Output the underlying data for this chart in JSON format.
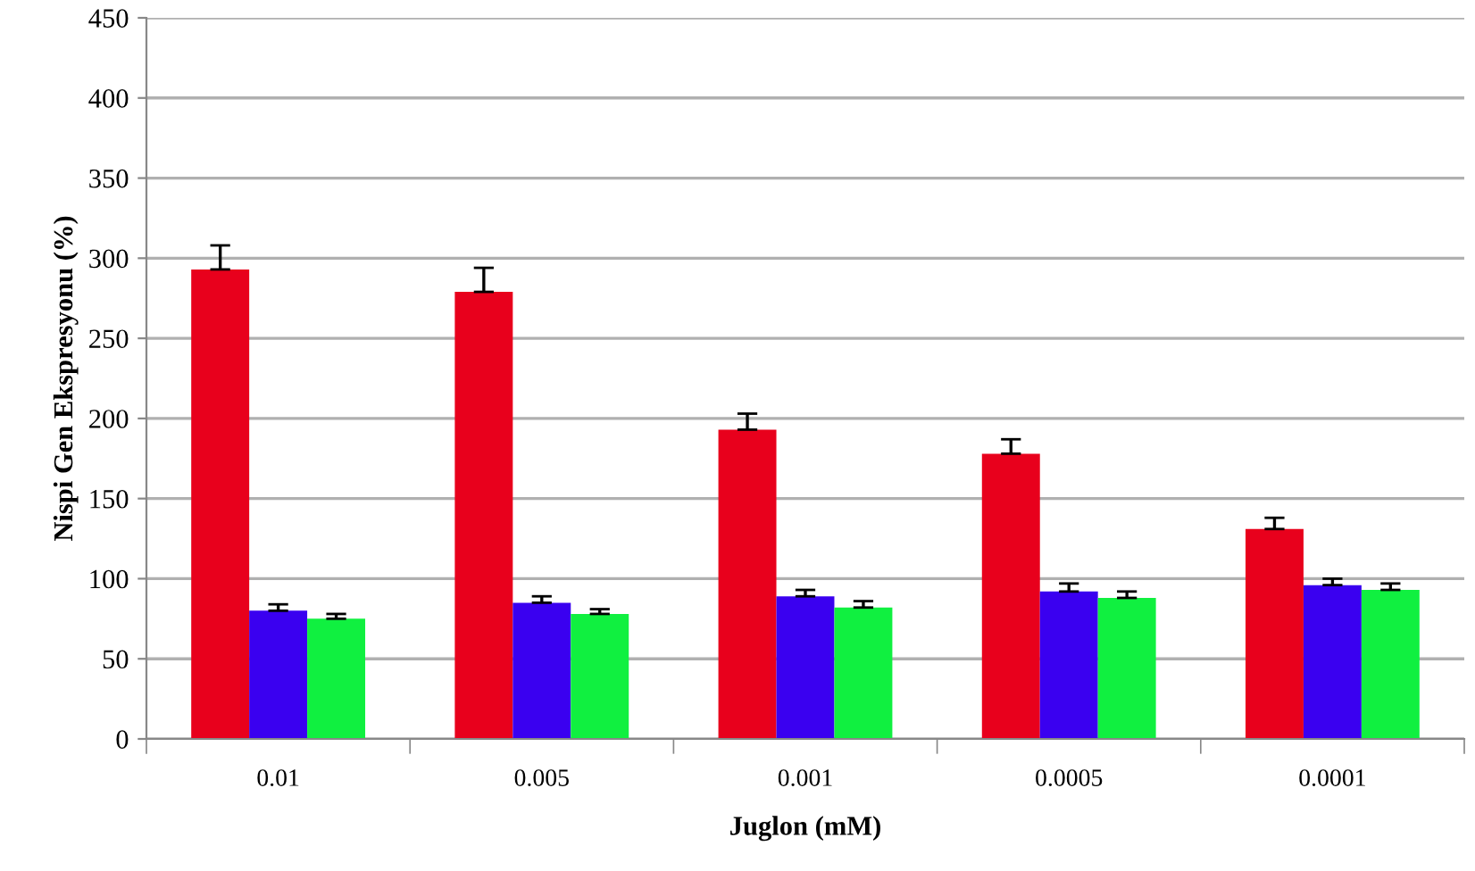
{
  "chart_data": {
    "type": "bar",
    "xlabel": "Juglon (mM)",
    "ylabel": "Nispi Gen Ekspresyonu (%)",
    "categories": [
      "0.01",
      "0.005",
      "0.001",
      "0.0005",
      "0.0001"
    ],
    "series": [
      {
        "color": "#e8001c",
        "values": [
          293,
          279,
          193,
          178,
          131
        ],
        "errors": [
          15,
          15,
          10,
          9,
          7
        ]
      },
      {
        "color": "#3a00f0",
        "values": [
          80,
          85,
          89,
          92,
          96
        ],
        "errors": [
          4,
          4,
          4,
          5,
          4
        ]
      },
      {
        "color": "#10f040",
        "values": [
          75,
          78,
          82,
          88,
          93
        ],
        "errors": [
          3,
          3,
          4,
          4,
          4
        ]
      }
    ],
    "ylim": [
      0,
      450
    ],
    "yticks": [
      0,
      50,
      100,
      150,
      200,
      250,
      300,
      350,
      400,
      450
    ],
    "grid": "y",
    "legend": false
  }
}
